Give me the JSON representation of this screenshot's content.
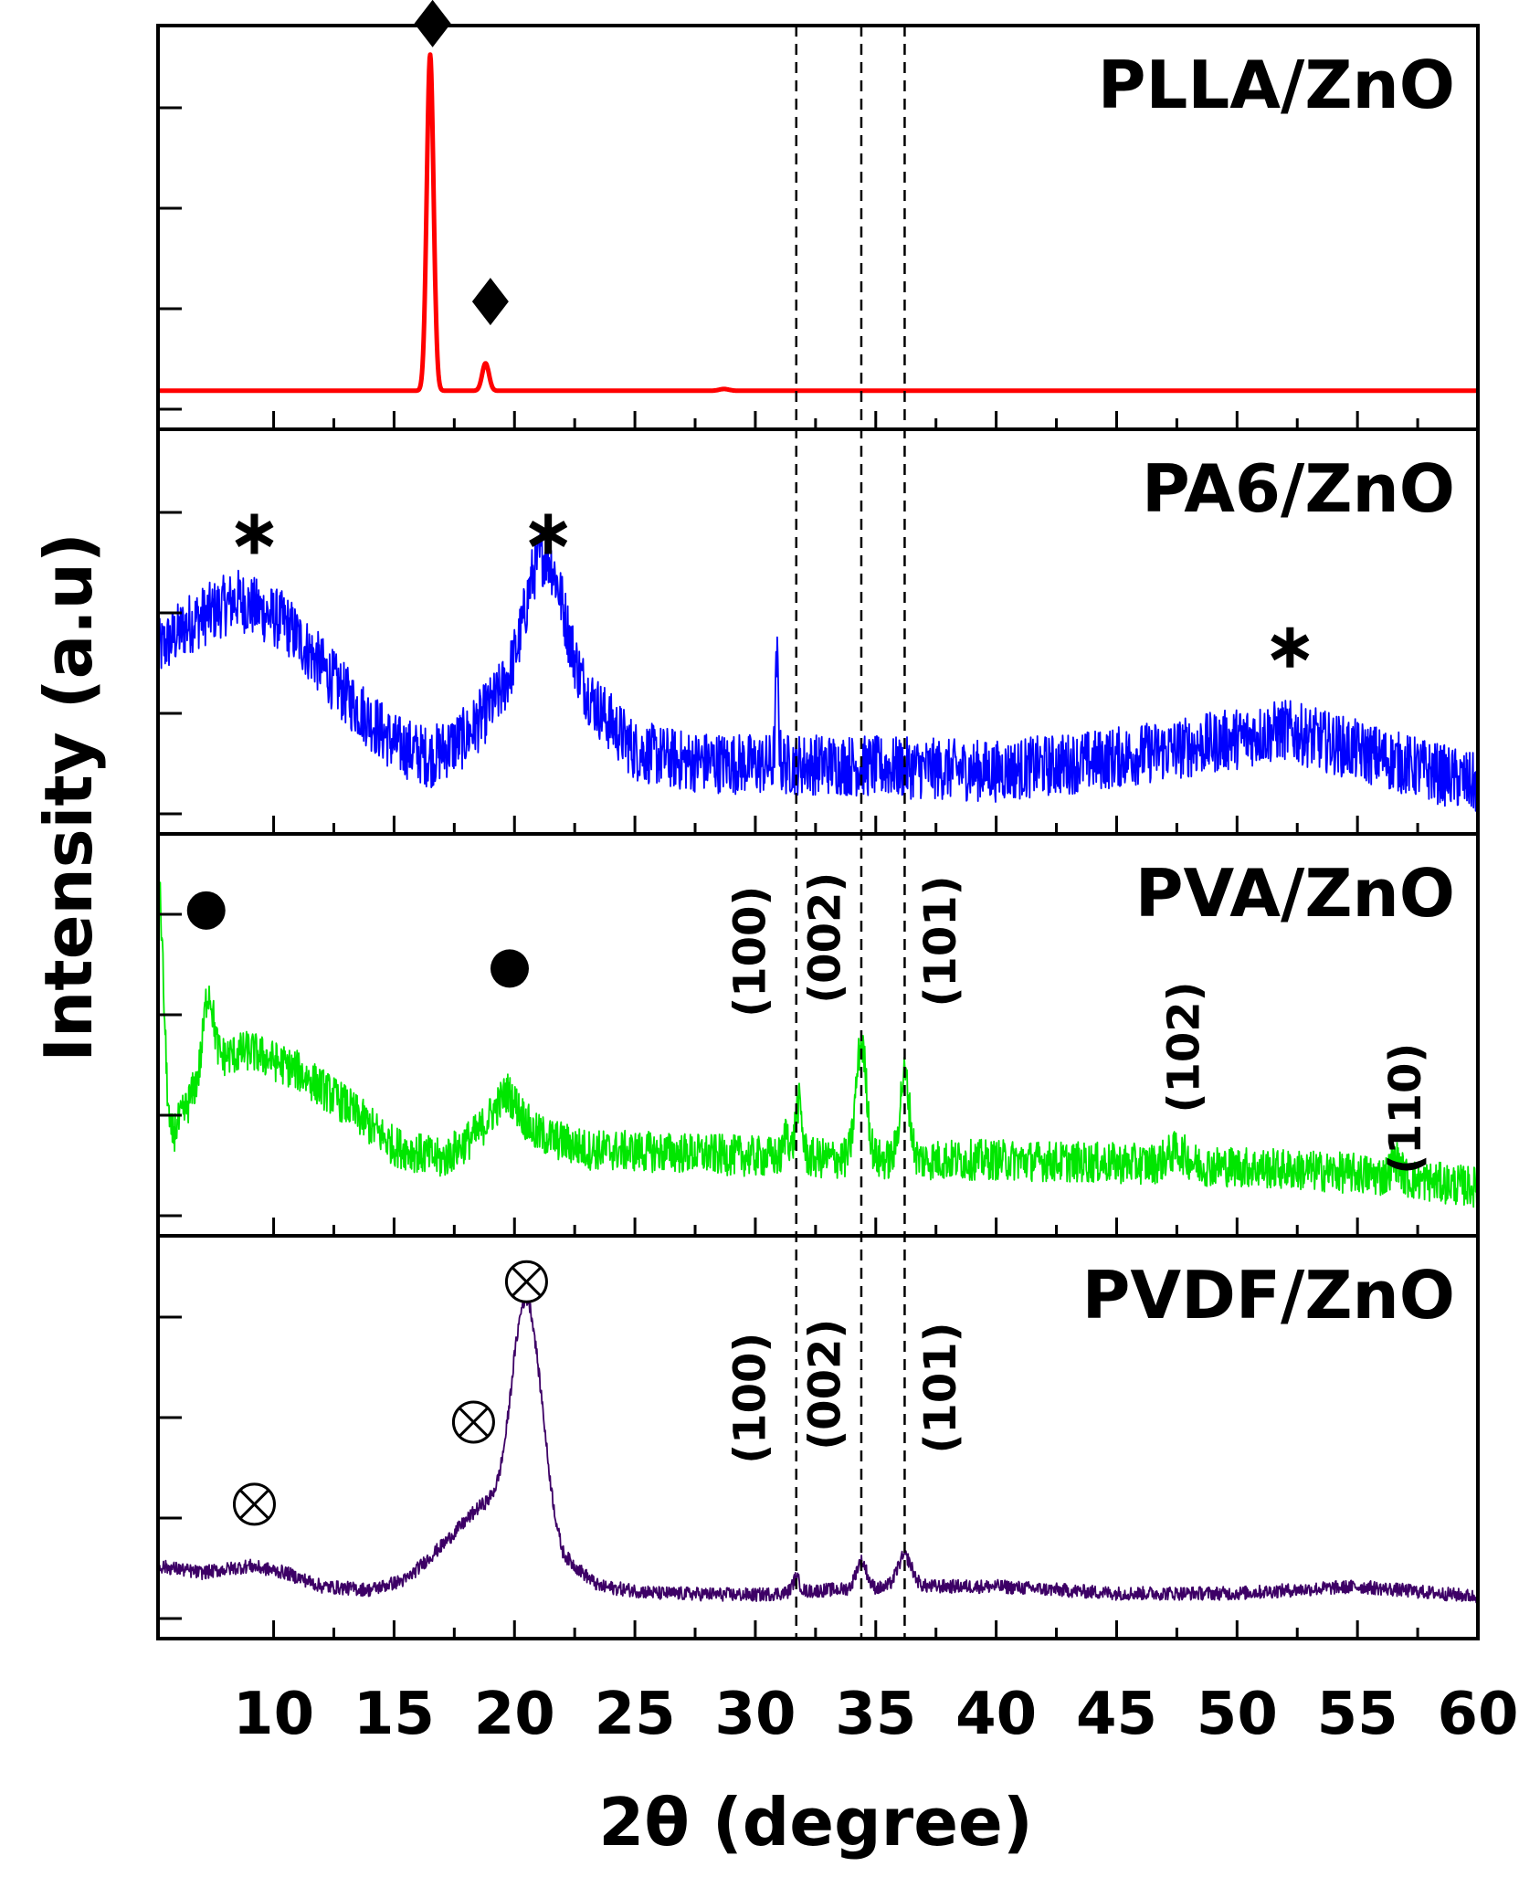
{
  "chart_data": {
    "type": "line",
    "layout": "stacked-panels",
    "xlabel": "2θ (degree)",
    "ylabel": "Intensity (a.u)",
    "xlim": [
      5.2,
      60
    ],
    "x_ticks": [
      "10",
      "15",
      "20",
      "25",
      "30",
      "35",
      "40",
      "45",
      "50",
      "55",
      "60"
    ],
    "x_tick_values": [
      10,
      15,
      20,
      25,
      30,
      35,
      40,
      45,
      50,
      55,
      60
    ],
    "reference_lines": [
      31.7,
      34.4,
      36.2
    ],
    "panels": [
      {
        "name": "PLLA/ZnO",
        "color": "#ff0000",
        "noise": 0.0,
        "baseline": [
          [
            5.2,
            0.03
          ],
          [
            60,
            0.03
          ]
        ],
        "peaks": [
          {
            "center": 16.5,
            "height": 0.98,
            "width": 0.14
          },
          {
            "center": 18.8,
            "height": 0.08,
            "width": 0.14
          },
          {
            "center": 28.7,
            "height": 0.005,
            "width": 0.2
          }
        ],
        "markers": [
          {
            "symbol": "diamond",
            "x": 16.6,
            "y": 1.1
          },
          {
            "symbol": "diamond",
            "x": 19.0,
            "y": 0.29
          }
        ],
        "annotations": []
      },
      {
        "name": "PA6/ZnO",
        "color": "#0000ff",
        "noise": 0.09,
        "baseline": [
          [
            5.2,
            0.45
          ],
          [
            6.5,
            0.53
          ],
          [
            8.5,
            0.6
          ],
          [
            10.5,
            0.53
          ],
          [
            13,
            0.32
          ],
          [
            15,
            0.18
          ],
          [
            16.5,
            0.14
          ],
          [
            18,
            0.2
          ],
          [
            19.5,
            0.33
          ],
          [
            20.7,
            0.45
          ],
          [
            22,
            0.4
          ],
          [
            23.5,
            0.28
          ],
          [
            25,
            0.16
          ],
          [
            27,
            0.13
          ],
          [
            30,
            0.12
          ],
          [
            33,
            0.12
          ],
          [
            36,
            0.11
          ],
          [
            40,
            0.1
          ],
          [
            44,
            0.13
          ],
          [
            48,
            0.17
          ],
          [
            52,
            0.22
          ],
          [
            55,
            0.16
          ],
          [
            60,
            0.06
          ]
        ],
        "peaks": [
          {
            "center": 21.3,
            "height": 0.3,
            "width": 0.7
          },
          {
            "center": 30.9,
            "height": 0.3,
            "width": 0.06
          }
        ],
        "markers": [
          {
            "symbol": "asterisk",
            "x": 9.2,
            "y": 0.79
          },
          {
            "symbol": "asterisk",
            "x": 21.4,
            "y": 0.79
          },
          {
            "symbol": "asterisk",
            "x": 52.2,
            "y": 0.46
          }
        ],
        "annotations": []
      },
      {
        "name": "PVA/ZnO",
        "color": "#00e600",
        "noise": 0.06,
        "baseline": [
          [
            5.2,
            0.55
          ],
          [
            5.7,
            0.2
          ],
          [
            6.3,
            0.28
          ],
          [
            7.2,
            0.43
          ],
          [
            9,
            0.46
          ],
          [
            11,
            0.4
          ],
          [
            13,
            0.3
          ],
          [
            15,
            0.18
          ],
          [
            17,
            0.14
          ],
          [
            18.5,
            0.22
          ],
          [
            19.7,
            0.34
          ],
          [
            20.8,
            0.22
          ],
          [
            23,
            0.17
          ],
          [
            27,
            0.16
          ],
          [
            30,
            0.15
          ],
          [
            35,
            0.14
          ],
          [
            40,
            0.14
          ],
          [
            45,
            0.13
          ],
          [
            50,
            0.12
          ],
          [
            55,
            0.1
          ],
          [
            60,
            0.06
          ]
        ],
        "peaks": [
          {
            "center": 5.25,
            "height": 0.42,
            "width": 0.18
          },
          {
            "center": 7.3,
            "height": 0.2,
            "width": 0.2
          },
          {
            "center": 31.3,
            "height": 0.08,
            "width": 0.1
          },
          {
            "center": 31.8,
            "height": 0.16,
            "width": 0.14
          },
          {
            "center": 34.4,
            "height": 0.34,
            "width": 0.22
          },
          {
            "center": 36.2,
            "height": 0.25,
            "width": 0.2
          },
          {
            "center": 47.5,
            "height": 0.04,
            "width": 0.4
          },
          {
            "center": 56.6,
            "height": 0.05,
            "width": 0.2
          }
        ],
        "markers": [
          {
            "symbol": "dot",
            "x": 7.2,
            "y": 0.87
          },
          {
            "symbol": "dot",
            "x": 19.8,
            "y": 0.7
          }
        ],
        "annotations": [
          {
            "label": "(100)",
            "x": 29.8,
            "y": 0.75
          },
          {
            "label": "(002)",
            "x": 32.9,
            "y": 0.79
          },
          {
            "label": "(101)",
            "x": 37.7,
            "y": 0.78
          },
          {
            "label": "(102)",
            "x": 47.8,
            "y": 0.47
          },
          {
            "label": "(110)",
            "x": 57.0,
            "y": 0.29
          }
        ]
      },
      {
        "name": "PVDF/ZnO",
        "color": "#3d0066",
        "noise": 0.02,
        "baseline": [
          [
            5.2,
            0.13
          ],
          [
            7,
            0.11
          ],
          [
            9,
            0.13
          ],
          [
            10.5,
            0.11
          ],
          [
            12,
            0.07
          ],
          [
            14,
            0.06
          ],
          [
            15.5,
            0.09
          ],
          [
            17,
            0.19
          ],
          [
            18.5,
            0.3
          ],
          [
            19.3,
            0.33
          ],
          [
            20,
            0.38
          ],
          [
            21.2,
            0.33
          ],
          [
            22,
            0.16
          ],
          [
            23.5,
            0.07
          ],
          [
            26,
            0.05
          ],
          [
            30,
            0.045
          ],
          [
            33,
            0.06
          ],
          [
            37,
            0.07
          ],
          [
            40,
            0.07
          ],
          [
            45,
            0.05
          ],
          [
            50,
            0.05
          ],
          [
            55,
            0.07
          ],
          [
            60,
            0.04
          ]
        ],
        "peaks": [
          {
            "center": 20.5,
            "height": 0.55,
            "width": 0.55
          },
          {
            "center": 31.7,
            "height": 0.04,
            "width": 0.15
          },
          {
            "center": 34.4,
            "height": 0.08,
            "width": 0.22
          },
          {
            "center": 36.2,
            "height": 0.09,
            "width": 0.3
          }
        ],
        "markers": [
          {
            "symbol": "otimes",
            "x": 9.2,
            "y": 0.31
          },
          {
            "symbol": "otimes",
            "x": 18.3,
            "y": 0.55
          },
          {
            "symbol": "otimes",
            "x": 20.5,
            "y": 0.96
          }
        ],
        "annotations": [
          {
            "label": "(100)",
            "x": 29.8,
            "y": 0.62
          },
          {
            "label": "(002)",
            "x": 32.9,
            "y": 0.66
          },
          {
            "label": "(101)",
            "x": 37.7,
            "y": 0.65
          }
        ]
      }
    ]
  }
}
